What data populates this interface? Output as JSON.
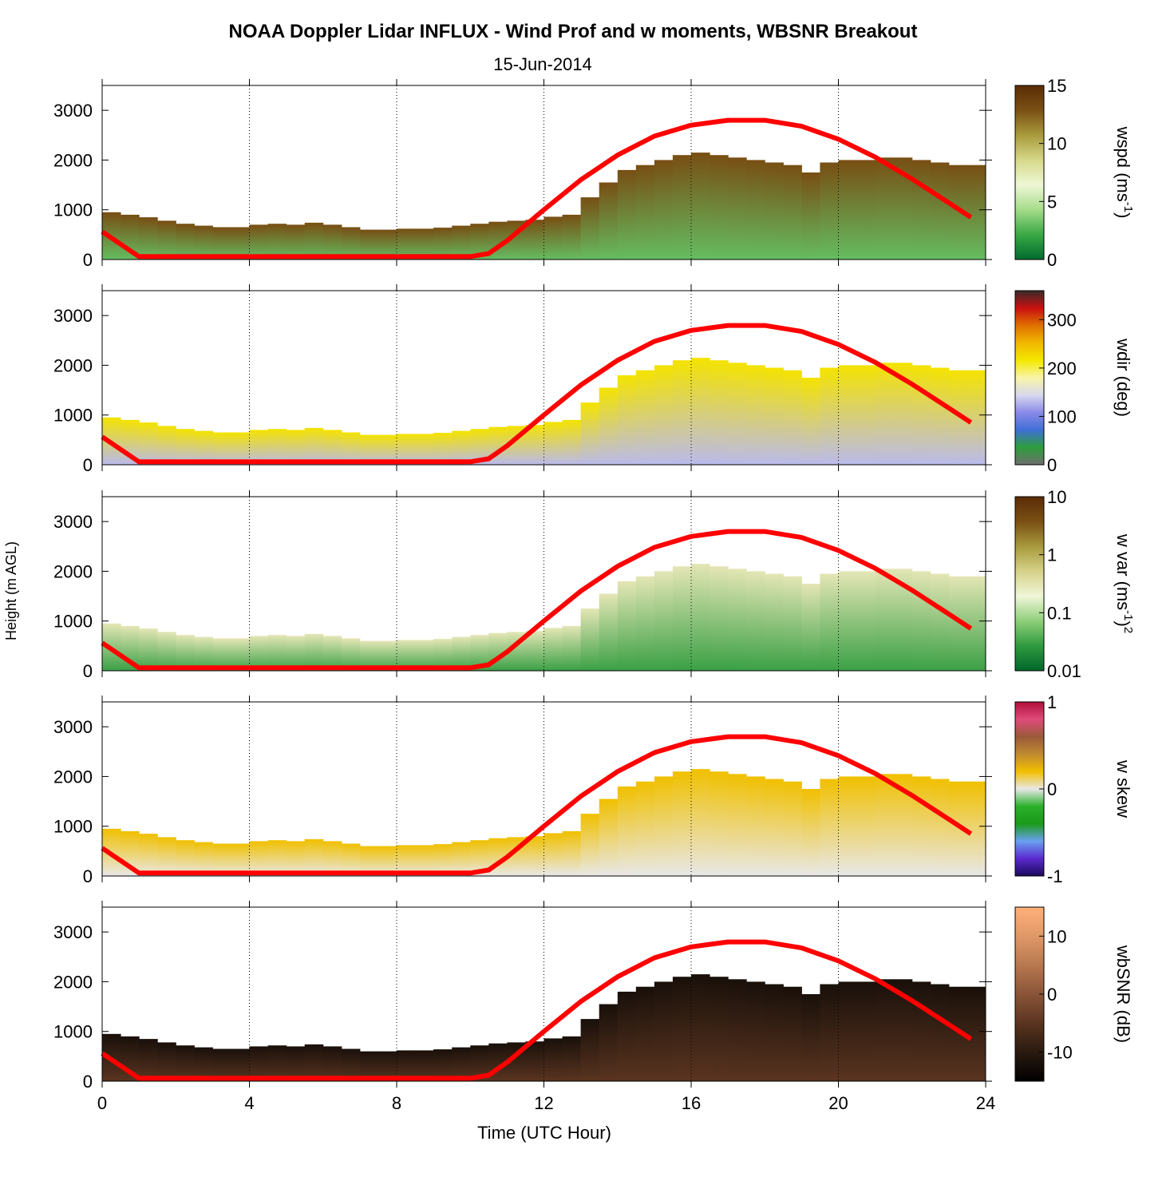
{
  "chart_data": {
    "type": "heatmap",
    "title": "NOAA Doppler Lidar INFLUX - Wind Prof and w moments, WBSNR Breakout",
    "subtitle": "15-Jun-2014",
    "xlabel": "Time (UTC Hour)",
    "ylabel": "Height (m AGL)",
    "xlim": [
      0,
      24
    ],
    "ylim": [
      0,
      3500
    ],
    "x_ticks": [
      0,
      4,
      8,
      12,
      16,
      20,
      24
    ],
    "x_tick_labels": [
      "0",
      "4",
      "8",
      "12",
      "16",
      "20",
      "24"
    ],
    "y_ticks": [
      0,
      1000,
      2000,
      3000
    ],
    "y_tick_labels": [
      "0",
      "1000",
      "2000",
      "3000"
    ],
    "vertical_gridlines": [
      4,
      8,
      12,
      16,
      20
    ],
    "mixing_height": {
      "color": "#ff0000",
      "hours": [
        0,
        1,
        2,
        4,
        6,
        8,
        10,
        10.5,
        11,
        12,
        13,
        14,
        15,
        16,
        17,
        18,
        19,
        20,
        21,
        22,
        23,
        23.6
      ],
      "heights": [
        560,
        60,
        60,
        60,
        60,
        60,
        60,
        120,
        380,
        1000,
        1600,
        2100,
        2480,
        2700,
        2800,
        2800,
        2680,
        2420,
        2060,
        1620,
        1140,
        850
      ]
    },
    "panels": [
      {
        "id": "wspd",
        "colorbar_label": "wspd (ms",
        "colorbar_sup": "-1",
        "colorbar_suffix": ")",
        "colorbar_ticks": [
          "15",
          "10",
          "5",
          "0"
        ],
        "range": [
          0,
          15
        ],
        "colormap": [
          "#006b2e",
          "#39a845",
          "#a6dc8a",
          "#eef7d6",
          "#d6d98a",
          "#a99b3c",
          "#7a5014",
          "#5a2c06"
        ],
        "boundary_layer_top": [
          950,
          900,
          850,
          780,
          720,
          680,
          650,
          650,
          700,
          720,
          700,
          740,
          700,
          650,
          600,
          600,
          620,
          620,
          640,
          680,
          720,
          760,
          780,
          800,
          860,
          900,
          1250,
          1550,
          1800,
          1900,
          2000,
          2100,
          2150,
          2100,
          2050,
          2000,
          1950,
          1900,
          1750,
          1950,
          2000,
          2000,
          2050,
          2050,
          2000,
          1950,
          1900,
          1900
        ],
        "bottom_value": 3,
        "top_value": 13
      },
      {
        "id": "wdir",
        "colorbar_label": "wdir (deg)",
        "colorbar_ticks": [
          "300",
          "200",
          "100",
          "0"
        ],
        "range": [
          0,
          360
        ],
        "colormap": [
          "#6e6e6e",
          "#2e9e3c",
          "#3f6fd6",
          "#8a8ae8",
          "#d8d8ee",
          "#f8f4a8",
          "#f4e800",
          "#f0b800",
          "#e07000",
          "#c81010",
          "#3a2a2a"
        ],
        "boundary_layer_top": [
          950,
          900,
          850,
          780,
          720,
          680,
          650,
          650,
          700,
          720,
          700,
          740,
          700,
          650,
          600,
          600,
          620,
          620,
          640,
          680,
          720,
          760,
          780,
          800,
          860,
          900,
          1250,
          1550,
          1800,
          1900,
          2000,
          2100,
          2150,
          2100,
          2050,
          2000,
          1950,
          1900,
          1750,
          1950,
          2000,
          2000,
          2050,
          2050,
          2000,
          1950,
          1900,
          1900
        ],
        "bottom_value": 130,
        "top_value": 220
      },
      {
        "id": "wvar",
        "colorbar_label": "w var (ms",
        "colorbar_sup": "-1",
        "colorbar_suffix": ")",
        "colorbar_sup2": "2",
        "colorbar_ticks": [
          "10",
          "1",
          "0.1",
          "0.01"
        ],
        "range": [
          0.01,
          10
        ],
        "log_scale": true,
        "colormap": [
          "#00672b",
          "#2f9a3e",
          "#8fcf7a",
          "#f0f6d8",
          "#d6d28a",
          "#a89a3c",
          "#7a5014",
          "#5a2c06"
        ],
        "boundary_layer_top": [
          950,
          900,
          850,
          780,
          720,
          680,
          650,
          650,
          700,
          720,
          700,
          740,
          700,
          650,
          600,
          600,
          620,
          620,
          640,
          680,
          720,
          760,
          780,
          800,
          860,
          900,
          1250,
          1550,
          1800,
          1900,
          2000,
          2100,
          2150,
          2100,
          2050,
          2000,
          1950,
          1900,
          1750,
          1950,
          2000,
          2000,
          2050,
          2050,
          2000,
          1950,
          1900,
          1900
        ],
        "bottom_value": 0.03,
        "top_value": 0.3
      },
      {
        "id": "wskew",
        "colorbar_label": "w skew",
        "colorbar_ticks": [
          "1",
          "0",
          "-1"
        ],
        "range": [
          -1,
          1
        ],
        "colormap": [
          "#1a0a5a",
          "#5a2ad0",
          "#6aa0f0",
          "#1a9a1a",
          "#2ab02a",
          "#e8e8e8",
          "#f0c000",
          "#c08a30",
          "#9a5a3a",
          "#e04a7a",
          "#b0103a"
        ],
        "boundary_layer_top": [
          950,
          900,
          850,
          780,
          720,
          680,
          650,
          650,
          700,
          720,
          700,
          740,
          700,
          650,
          600,
          600,
          620,
          620,
          640,
          680,
          720,
          760,
          780,
          800,
          860,
          900,
          1250,
          1550,
          1800,
          1900,
          2000,
          2100,
          2150,
          2100,
          2050,
          2000,
          1950,
          1900,
          1750,
          1950,
          2000,
          2000,
          2050,
          2050,
          2000,
          1950,
          1900,
          1900
        ],
        "bottom_value": 0,
        "top_value": 0.2
      },
      {
        "id": "wbsnr",
        "colorbar_label": "wbSNR (dB)",
        "colorbar_ticks": [
          "10",
          "0",
          "-10"
        ],
        "range": [
          -15,
          15
        ],
        "colormap": [
          "#000000",
          "#2a1a10",
          "#5a3420",
          "#8a5438",
          "#b87850",
          "#e09868",
          "#ffb07a"
        ],
        "boundary_layer_top": [
          950,
          900,
          850,
          780,
          720,
          680,
          650,
          650,
          700,
          720,
          700,
          740,
          700,
          650,
          600,
          600,
          620,
          620,
          640,
          680,
          720,
          760,
          780,
          800,
          860,
          900,
          1250,
          1550,
          1800,
          1900,
          2000,
          2100,
          2150,
          2100,
          2050,
          2000,
          1950,
          1900,
          1750,
          1950,
          2000,
          2000,
          2050,
          2050,
          2000,
          1950,
          1900,
          1900
        ],
        "bottom_value": -5,
        "top_value": -12
      }
    ]
  }
}
